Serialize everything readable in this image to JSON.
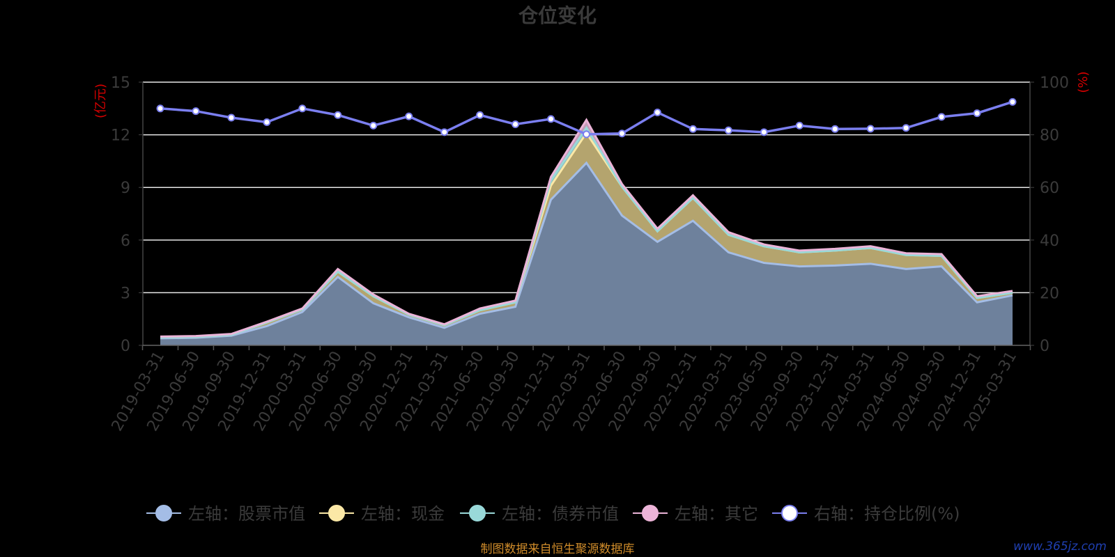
{
  "watermark": "www.365jz.com",
  "chart_data": {
    "type": "area",
    "title": "仓位变化",
    "source_note": "制图数据来自恒生聚源数据库",
    "left_axis": {
      "unit_label": "(亿元)",
      "range": [
        0,
        15
      ],
      "ticks": [
        "0",
        "3",
        "6",
        "9",
        "12",
        "15"
      ]
    },
    "right_axis": {
      "unit_label": "(%)",
      "range": [
        0,
        100
      ],
      "ticks": [
        "0",
        "20",
        "40",
        "60",
        "80",
        "100"
      ]
    },
    "grid": true,
    "legend_position": "bottom",
    "categories": [
      "2019-03-31",
      "2019-06-30",
      "2019-09-30",
      "2019-12-31",
      "2020-03-31",
      "2020-06-30",
      "2020-09-30",
      "2020-12-31",
      "2021-03-31",
      "2021-06-30",
      "2021-09-30",
      "2021-12-31",
      "2022-03-31",
      "2022-06-30",
      "2022-09-30",
      "2022-12-31",
      "2023-03-31",
      "2023-06-30",
      "2023-09-30",
      "2023-12-31",
      "2024-03-31",
      "2024-06-30",
      "2024-09-30",
      "2024-12-31",
      "2025-03-31"
    ],
    "series": [
      {
        "name": "左轴：股票市值",
        "axis": "left",
        "kind": "stacked-area",
        "color": "#a4bde6",
        "fill": "#6e819c",
        "values": [
          0.4,
          0.43,
          0.55,
          1.1,
          1.9,
          3.9,
          2.4,
          1.6,
          1.0,
          1.8,
          2.2,
          8.3,
          10.4,
          7.4,
          5.9,
          7.1,
          5.3,
          4.7,
          4.5,
          4.55,
          4.65,
          4.35,
          4.5,
          2.45,
          2.85
        ]
      },
      {
        "name": "左轴：现金",
        "axis": "left",
        "kind": "stacked-area",
        "color": "#fbe8a6",
        "fill": "#b4a46e",
        "values": [
          0.05,
          0.05,
          0.05,
          0.2,
          0.15,
          0.3,
          0.4,
          0.15,
          0.15,
          0.2,
          0.25,
          0.8,
          1.7,
          1.65,
          0.6,
          1.3,
          1.0,
          0.95,
          0.8,
          0.85,
          0.9,
          0.8,
          0.6,
          0.25,
          0.15
        ]
      },
      {
        "name": "左轴：债券市值",
        "axis": "left",
        "kind": "stacked-area",
        "color": "#99d9d9",
        "fill": "#8fbfbf",
        "values": [
          0,
          0,
          0,
          0,
          0,
          0,
          0,
          0,
          0,
          0,
          0,
          0.3,
          0.3,
          0,
          0,
          0,
          0,
          0,
          0,
          0,
          0,
          0,
          0,
          0,
          0
        ]
      },
      {
        "name": "左轴：其它",
        "axis": "left",
        "kind": "stacked-area",
        "color": "#ecb4d8",
        "fill": "#c49bb8",
        "values": [
          0.05,
          0.05,
          0.05,
          0.05,
          0.05,
          0.15,
          0.1,
          0.05,
          0.05,
          0.1,
          0.1,
          0.2,
          0.45,
          0.15,
          0.15,
          0.15,
          0.15,
          0.1,
          0.1,
          0.1,
          0.1,
          0.1,
          0.1,
          0.1,
          0.1
        ]
      },
      {
        "name": "右轴：持仓比例(%)",
        "axis": "right",
        "kind": "line",
        "color": "#7b7ff0",
        "values": [
          90,
          89,
          86.5,
          84.8,
          90,
          87.5,
          83.5,
          87,
          81,
          87.5,
          84,
          86,
          80.2,
          80.5,
          88.5,
          82.2,
          81.7,
          81,
          83.5,
          82.2,
          82.3,
          82.6,
          86.8,
          88.2,
          92.5
        ]
      }
    ]
  }
}
